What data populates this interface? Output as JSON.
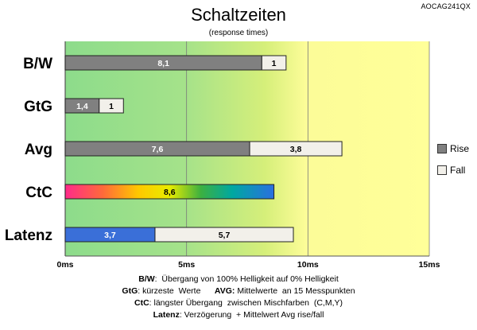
{
  "model_label": "AOCAG241QX",
  "chart_data": {
    "type": "bar",
    "orientation": "horizontal",
    "stacked": true,
    "title": "Schaltzeiten",
    "subtitle": "(response times)",
    "categories": [
      "B/W",
      "GtG",
      "Avg",
      "CtC",
      "Latenz"
    ],
    "series": [
      {
        "name": "Rise",
        "values": [
          8.1,
          1.4,
          7.6,
          8.6,
          3.7
        ],
        "labels": [
          "8,1",
          "1,4",
          "7,6",
          "8,6",
          "3,7"
        ]
      },
      {
        "name": "Fall",
        "values": [
          1,
          1,
          3.8,
          null,
          5.7
        ],
        "labels": [
          "1",
          "1",
          "3,8",
          "",
          "5,7"
        ]
      }
    ],
    "xlim": [
      0,
      15
    ],
    "ticks": [
      0,
      5,
      10,
      15
    ],
    "tick_labels": [
      "0ms",
      "5ms",
      "10ms",
      "15ms"
    ],
    "legend": [
      {
        "name": "Rise",
        "color": "#808080"
      },
      {
        "name": "Fall",
        "color": "#f2f0ea"
      }
    ],
    "legend_position": "right",
    "grid": true,
    "colors": {
      "rise": "#808080",
      "fall": "#f2f0ea",
      "latenz_rise": "#3a6fd8",
      "zone_good": "#8ddc8b",
      "zone_mid": "#d6ef7a",
      "zone_warn": "#ffff99"
    }
  },
  "footnotes": [
    {
      "parts": [
        {
          "bold": true,
          "text": "B/W"
        },
        {
          "bold": false,
          "text": ":  Übergang von 100% Helligkeit auf 0% Helligkeit"
        }
      ]
    },
    {
      "parts": [
        {
          "bold": true,
          "text": "GtG"
        },
        {
          "bold": false,
          "text": ": kürzeste  Werte      "
        },
        {
          "bold": true,
          "text": "AVG:"
        },
        {
          "bold": false,
          "text": " Mittelwerte  an 15 Messpunkten"
        }
      ]
    },
    {
      "parts": [
        {
          "bold": true,
          "text": "CtC"
        },
        {
          "bold": false,
          "text": ": längster Übergang  zwischen Mischfarben  (C,M,Y)"
        }
      ]
    },
    {
      "parts": [
        {
          "bold": true,
          "text": "Latenz"
        },
        {
          "bold": false,
          "text": ": Verzögerung  + Mittelwert Avg rise/fall"
        }
      ]
    }
  ]
}
